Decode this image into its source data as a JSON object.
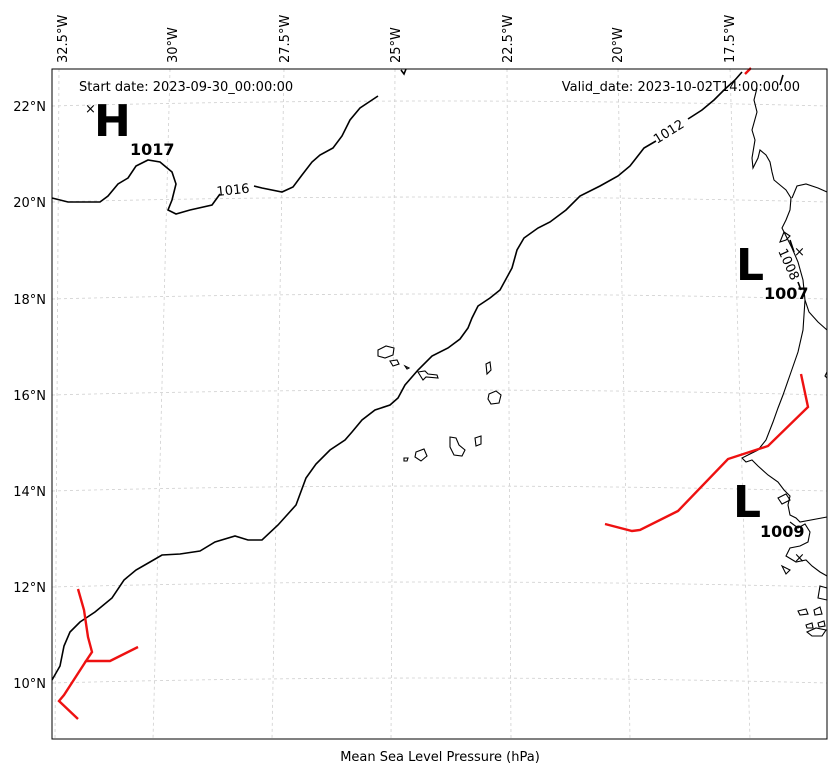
{
  "header": {
    "start_date": "Start date: 2023-09-30_00:00:00",
    "valid_date": "Valid_date: 2023-10-02T14:00:00.00"
  },
  "footer": {
    "caption": "Mean Sea Level Pressure (hPa)"
  },
  "axes": {
    "lon_labels": [
      "32.5°W",
      "30°W",
      "27.5°W",
      "25°W",
      "22.5°W",
      "20°W",
      "17.5°W"
    ],
    "lat_labels": [
      "22°N",
      "20°N",
      "18°N",
      "16°N",
      "14°N",
      "12°N",
      "10°N"
    ]
  },
  "pressure_centers": [
    {
      "letter": "H",
      "value": "1017",
      "kind": "high"
    },
    {
      "letter": "L",
      "value": "1007",
      "kind": "low"
    },
    {
      "letter": "L",
      "value": "1009",
      "kind": "low"
    }
  ],
  "contour_labels": [
    "1016",
    "1012",
    "1008"
  ],
  "colors": {
    "fronts": "#ee1111",
    "isobars": "#000000",
    "grid": "#cfcfcf"
  }
}
